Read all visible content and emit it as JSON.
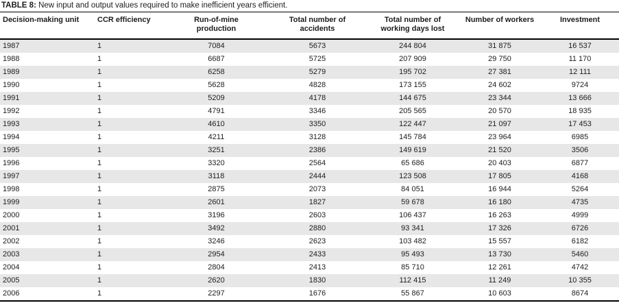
{
  "title": {
    "label": "TABLE 8:",
    "text": " New input and output values required to make inefficient years efficient."
  },
  "table": {
    "headers": [
      "Decision-making unit",
      "CCR efficiency",
      "Run-of-mine\nproduction",
      "Total number of\naccidents",
      "Total number of\nworking days lost",
      "Number of workers",
      "Investment"
    ],
    "rows": [
      [
        "1987",
        "1",
        "7084",
        "5673",
        "244 804",
        "31 875",
        "16 537"
      ],
      [
        "1988",
        "1",
        "6687",
        "5725",
        "207 909",
        "29 750",
        "11 170"
      ],
      [
        "1989",
        "1",
        "6258",
        "5279",
        "195 702",
        "27 381",
        "12 111"
      ],
      [
        "1990",
        "1",
        "5628",
        "4828",
        "173 155",
        "24 602",
        "9724"
      ],
      [
        "1991",
        "1",
        "5209",
        "4178",
        "144 675",
        "23 344",
        "13 666"
      ],
      [
        "1992",
        "1",
        "4791",
        "3346",
        "205 565",
        "20 570",
        "18 935"
      ],
      [
        "1993",
        "1",
        "4610",
        "3350",
        "122 447",
        "21 097",
        "17 453"
      ],
      [
        "1994",
        "1",
        "4211",
        "3128",
        "145 784",
        "23 964",
        "6985"
      ],
      [
        "1995",
        "1",
        "3251",
        "2386",
        "149 619",
        "21 520",
        "3506"
      ],
      [
        "1996",
        "1",
        "3320",
        "2564",
        "65 686",
        "20 403",
        "6877"
      ],
      [
        "1997",
        "1",
        "3118",
        "2444",
        "123 508",
        "17 805",
        "4168"
      ],
      [
        "1998",
        "1",
        "2875",
        "2073",
        "84 051",
        "16 944",
        "5264"
      ],
      [
        "1999",
        "1",
        "2601",
        "1827",
        "59 678",
        "16 180",
        "4735"
      ],
      [
        "2000",
        "1",
        "3196",
        "2603",
        "106 437",
        "16 263",
        "4999"
      ],
      [
        "2001",
        "1",
        "3492",
        "2880",
        "93 341",
        "17 326",
        "6726"
      ],
      [
        "2002",
        "1",
        "3246",
        "2623",
        "103 482",
        "15 557",
        "6182"
      ],
      [
        "2003",
        "1",
        "2954",
        "2433",
        "95 493",
        "13 730",
        "5460"
      ],
      [
        "2004",
        "1",
        "2804",
        "2413",
        "85 710",
        "12 261",
        "4742"
      ],
      [
        "2005",
        "1",
        "2620",
        "1830",
        "112 415",
        "11 249",
        "10 355"
      ],
      [
        "2006",
        "1",
        "2297",
        "1676",
        "55 867",
        "10 603",
        "8674"
      ]
    ]
  },
  "colors": {
    "stripe": "#e7e7e7",
    "rule": "#000000",
    "text": "#1c1c1c",
    "background": "#ffffff"
  }
}
